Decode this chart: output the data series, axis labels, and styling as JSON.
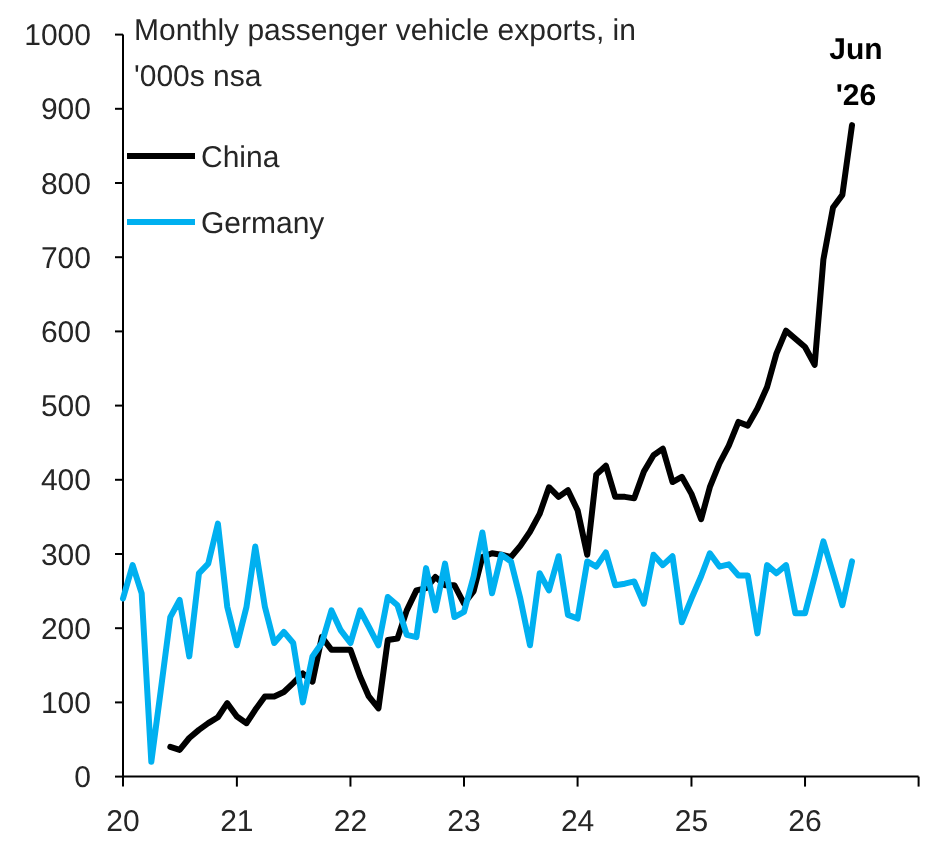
{
  "chart_data": {
    "type": "line",
    "title": "Monthly passenger vehicle exports, in '000s nsa",
    "x": [
      "2020-01",
      "2020-02",
      "2020-03",
      "2020-04",
      "2020-05",
      "2020-06",
      "2020-07",
      "2020-08",
      "2020-09",
      "2020-10",
      "2020-11",
      "2020-12",
      "2021-01",
      "2021-02",
      "2021-03",
      "2021-04",
      "2021-05",
      "2021-06",
      "2021-07",
      "2021-08",
      "2021-09",
      "2021-10",
      "2021-11",
      "2021-12",
      "2022-01",
      "2022-02",
      "2022-03",
      "2022-04",
      "2022-05",
      "2022-06",
      "2022-07",
      "2022-08",
      "2022-09",
      "2022-10",
      "2022-11",
      "2022-12",
      "2023-01",
      "2023-02",
      "2023-03",
      "2023-04",
      "2023-05",
      "2023-06",
      "2023-07",
      "2023-08",
      "2023-09",
      "2023-10",
      "2023-11",
      "2023-12",
      "2024-01",
      "2024-02",
      "2024-03",
      "2024-04",
      "2024-05",
      "2024-06",
      "2024-07",
      "2024-08",
      "2024-09",
      "2024-10",
      "2024-11",
      "2024-12",
      "2025-01",
      "2025-02",
      "2025-03",
      "2025-04",
      "2025-05",
      "2025-06",
      "2025-07",
      "2025-08",
      "2025-09",
      "2025-10",
      "2025-11",
      "2025-12",
      "2026-01",
      "2026-02",
      "2026-03",
      "2026-04",
      "2026-05",
      "2026-06"
    ],
    "series": [
      {
        "name": "China",
        "color": "#000000",
        "values": [
          null,
          null,
          null,
          null,
          null,
          40,
          36,
          52,
          63,
          72,
          80,
          99,
          81,
          72,
          90,
          108,
          108,
          114,
          126,
          139,
          128,
          188,
          171,
          171,
          171,
          135,
          108,
          92,
          184,
          186,
          224,
          251,
          254,
          269,
          258,
          258,
          233,
          250,
          296,
          301,
          299,
          296,
          311,
          330,
          354,
          390,
          377,
          386,
          359,
          299,
          407,
          419,
          377,
          377,
          375,
          411,
          433,
          442,
          397,
          404,
          381,
          347,
          390,
          422,
          446,
          478,
          473,
          496,
          525,
          570,
          601,
          590,
          579,
          555,
          697,
          767,
          784,
          878
        ]
      },
      {
        "name": "Germany",
        "color": "#00b0f0",
        "values": [
          240,
          285,
          247,
          20,
          115,
          215,
          238,
          162,
          274,
          287,
          341,
          229,
          177,
          229,
          310,
          229,
          180,
          195,
          180,
          100,
          162,
          180,
          224,
          197,
          180,
          224,
          202,
          177,
          242,
          231,
          191,
          188,
          281,
          224,
          287,
          215,
          222,
          270,
          329,
          247,
          299,
          290,
          240,
          177,
          274,
          251,
          297,
          218,
          213,
          290,
          283,
          302,
          258,
          260,
          263,
          233,
          299,
          285,
          297,
          208,
          240,
          270,
          301,
          283,
          286,
          271,
          271,
          193,
          285,
          274,
          285,
          220,
          220,
          270,
          317,
          274,
          231,
          290
        ]
      }
    ],
    "xlim": [
      "2020-01",
      "2027-01"
    ],
    "xticks": [
      {
        "value": "2020-01",
        "label": "20"
      },
      {
        "value": "2021-01",
        "label": "21"
      },
      {
        "value": "2022-01",
        "label": "22"
      },
      {
        "value": "2023-01",
        "label": "23"
      },
      {
        "value": "2024-01",
        "label": "24"
      },
      {
        "value": "2025-01",
        "label": "25"
      },
      {
        "value": "2026-01",
        "label": "26"
      },
      {
        "value": "2027-01",
        "label": null
      }
    ],
    "ylim": [
      0,
      1000
    ],
    "yticks": [
      0,
      100,
      200,
      300,
      400,
      500,
      600,
      700,
      800,
      900,
      1000
    ],
    "legend": "top left",
    "annotations": [
      {
        "text": "Jun '26",
        "x": "2026-06",
        "y": 878
      }
    ]
  }
}
